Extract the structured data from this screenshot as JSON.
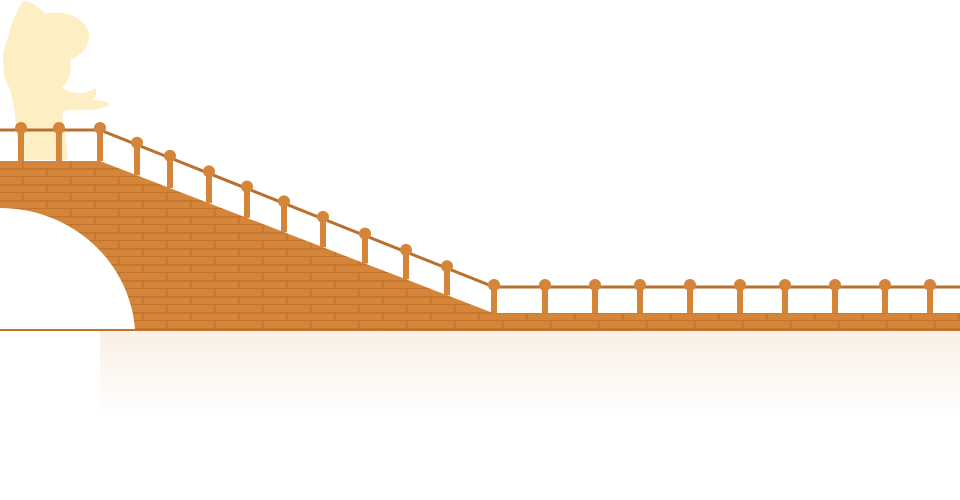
{
  "colors": {
    "brick": "#d4853a",
    "mortar": "#c2742c",
    "rail": "#b8702e",
    "post": "#d4853a",
    "silhouette": "#fdeec4",
    "background": "#ffffff"
  }
}
